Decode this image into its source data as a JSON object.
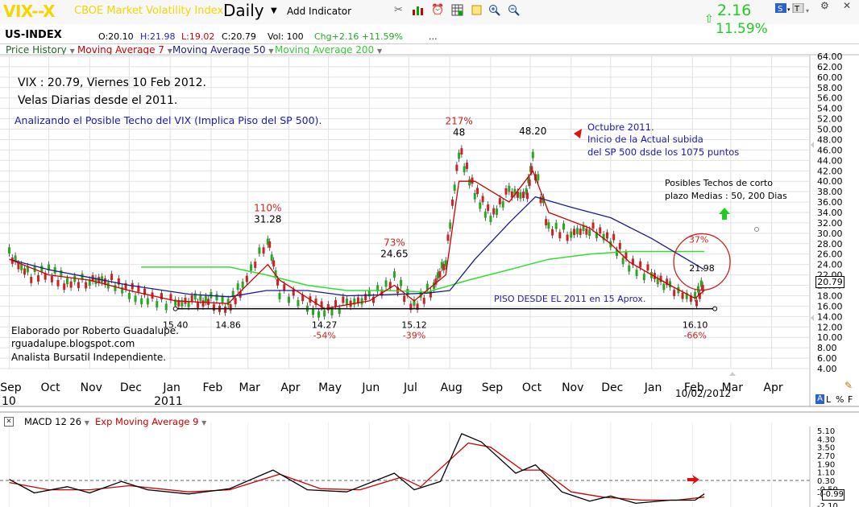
{
  "toolbar": {
    "symbol": "VIX--X",
    "description": "CBOE Market Volatility Index",
    "period": "Daily",
    "add_indicator": "Add Indicator",
    "change_value": "2.16",
    "change_pct": "11.59%",
    "icons": [
      "tools-icon",
      "bar-chart-icon",
      "alarm-icon",
      "grid-icon",
      "note-icon",
      "zoom-in-icon",
      "zoom-out-icon"
    ],
    "win_icons": [
      "s-icon",
      "t-icon",
      "settings-icon",
      "close-icon"
    ]
  },
  "quote": {
    "index_label": "US-INDEX",
    "open": "O:20.10",
    "high": "H:21.98",
    "low": "L:19.02",
    "close": "C:20.79",
    "volume": "Vol: 100",
    "change": "Chg+2.16 +11.59%",
    "more": "..."
  },
  "legend": {
    "price_history": "Price History",
    "ma7": "Moving Average 7",
    "ma50": "Moving Average 50",
    "ma200": "Moving Average 200"
  },
  "annotations": {
    "line1": "VIX : 20.79, Viernes 10 Feb 2012.",
    "line2": "Velas Diarias desde el 2011.",
    "line3": "Analizando el Posible Techo del VIX (Implica Piso del  SP 500).",
    "oct_title": "Octubre 2011.",
    "oct_line2": "Inicio de la Actual subida",
    "oct_line3": "del SP 500 dsde los 1075 puntos",
    "techos1": "Posibles Techos de corto",
    "techos2": "plazo Medias : 50, 200 Dias",
    "piso": "PISO DESDE EL 2011 en 15 Aprox.",
    "credit1": "Elaborado por Roberto Guadalupe.",
    "credit2": "rguadalupe.blogspot.com",
    "credit3": "Analista Bursatil Independiente.",
    "date_label": "10/02/2012",
    "last_price": "20.79",
    "mode_a": "A",
    "mode_l": "L",
    "mode_pct": "%",
    "mode_f": "F"
  },
  "peaks": [
    {
      "label": "15.40",
      "pct": "",
      "x": "2011-01-05",
      "y": 15.4,
      "pos": "below"
    },
    {
      "label": "14.86",
      "pct": "",
      "x": "2011-02-14",
      "y": 14.86,
      "pos": "below"
    },
    {
      "label": "31.28",
      "pct": "110%",
      "x": "2011-03-16",
      "y": 31.28,
      "pos": "above"
    },
    {
      "label": "14.27",
      "pct": "-54%",
      "x": "2011-04-28",
      "y": 14.27,
      "pos": "below"
    },
    {
      "label": "24.65",
      "pct": "73%",
      "x": "2011-06-20",
      "y": 24.65,
      "pos": "above"
    },
    {
      "label": "15.12",
      "pct": "-39%",
      "x": "2011-07-05",
      "y": 15.12,
      "pos": "below"
    },
    {
      "label": "48",
      "pct": "217%",
      "x": "2011-08-08",
      "y": 48.0,
      "pos": "above"
    },
    {
      "label": "48.20",
      "pct": "",
      "x": "2011-10-03",
      "y": 48.2,
      "pos": "above"
    },
    {
      "label": "21.98",
      "pct": "37%",
      "x": "2012-02-10",
      "y": 21.98,
      "pos": "circle"
    },
    {
      "label": "16.10",
      "pct": "-66%",
      "x": "2012-02-03",
      "y": 16.1,
      "pos": "below"
    }
  ],
  "chart_data": {
    "type": "line",
    "title": "VIX--X CBOE Market Volatility Index",
    "x_axis": {
      "months": [
        "Sep",
        "Oct",
        "Nov",
        "Dec",
        "Jan",
        "Feb",
        "Mar",
        "Apr",
        "May",
        "Jun",
        "Jul",
        "Aug",
        "Sep",
        "Oct",
        "Nov",
        "Dec",
        "Jan",
        "Feb",
        "Mar",
        "Apr"
      ],
      "years": [
        "10",
        "2011"
      ]
    },
    "ylim": [
      4,
      64
    ],
    "y_ticks": [
      "64.00",
      "62.00",
      "60.00",
      "58.00",
      "56.00",
      "54.00",
      "52.00",
      "50.00",
      "48.00",
      "46.00",
      "44.00",
      "42.00",
      "40.00",
      "38.00",
      "36.00",
      "34.00",
      "32.00",
      "30.00",
      "28.00",
      "26.00",
      "24.00",
      "22.00",
      "20.00",
      "18.00",
      "16.00",
      "14.00",
      "12.00",
      "10.00",
      "8.00",
      "6.00",
      "4.00"
    ],
    "grid": true,
    "legend_position": "top-left",
    "series": [
      {
        "name": "Price History",
        "color": "#228b22",
        "values": [
          [
            "2010-09-01",
            26
          ],
          [
            "2010-09-15",
            22
          ],
          [
            "2010-10-01",
            22.5
          ],
          [
            "2010-10-15",
            20.5
          ],
          [
            "2010-11-01",
            21
          ],
          [
            "2010-11-15",
            21
          ],
          [
            "2010-12-01",
            19
          ],
          [
            "2010-12-15",
            17.5
          ],
          [
            "2011-01-05",
            16.5
          ],
          [
            "2011-01-20",
            17
          ],
          [
            "2011-02-01",
            17
          ],
          [
            "2011-02-14",
            16
          ],
          [
            "2011-02-25",
            20
          ],
          [
            "2011-03-16",
            29
          ],
          [
            "2011-03-25",
            19
          ],
          [
            "2011-04-15",
            16.5
          ],
          [
            "2011-04-28",
            15
          ],
          [
            "2011-05-15",
            16.5
          ],
          [
            "2011-06-01",
            17.5
          ],
          [
            "2011-06-20",
            21
          ],
          [
            "2011-07-05",
            16
          ],
          [
            "2011-07-20",
            20
          ],
          [
            "2011-07-29",
            25
          ],
          [
            "2011-08-08",
            46
          ],
          [
            "2011-08-20",
            38
          ],
          [
            "2011-09-01",
            33
          ],
          [
            "2011-09-15",
            38
          ],
          [
            "2011-09-28",
            37
          ],
          [
            "2011-10-03",
            44
          ],
          [
            "2011-10-15",
            31
          ],
          [
            "2011-11-01",
            30
          ],
          [
            "2011-11-15",
            31
          ],
          [
            "2011-12-01",
            29
          ],
          [
            "2011-12-15",
            24
          ],
          [
            "2012-01-01",
            22
          ],
          [
            "2012-01-15",
            19.5
          ],
          [
            "2012-02-03",
            17
          ],
          [
            "2012-02-10",
            20.79
          ]
        ]
      },
      {
        "name": "Moving Average 7",
        "color": "#cc0000",
        "values": [
          [
            "2010-09-01",
            25
          ],
          [
            "2010-10-01",
            22
          ],
          [
            "2010-11-01",
            21
          ],
          [
            "2010-12-01",
            19
          ],
          [
            "2011-01-05",
            17
          ],
          [
            "2011-02-14",
            16.5
          ],
          [
            "2011-03-16",
            24
          ],
          [
            "2011-03-25",
            21
          ],
          [
            "2011-04-28",
            15.5
          ],
          [
            "2011-06-01",
            17
          ],
          [
            "2011-06-20",
            20
          ],
          [
            "2011-07-05",
            17
          ],
          [
            "2011-07-29",
            22
          ],
          [
            "2011-08-08",
            40
          ],
          [
            "2011-08-20",
            40
          ],
          [
            "2011-09-15",
            36
          ],
          [
            "2011-10-03",
            42
          ],
          [
            "2011-10-15",
            34
          ],
          [
            "2011-11-15",
            31
          ],
          [
            "2011-12-01",
            28
          ],
          [
            "2011-12-15",
            24.5
          ],
          [
            "2012-01-15",
            20
          ],
          [
            "2012-02-03",
            17.5
          ],
          [
            "2012-02-10",
            19
          ]
        ]
      },
      {
        "name": "Moving Average 50",
        "color": "#1a1a8c",
        "values": [
          [
            "2010-09-01",
            25
          ],
          [
            "2010-10-01",
            23
          ],
          [
            "2010-11-01",
            21.5
          ],
          [
            "2010-12-01",
            20
          ],
          [
            "2011-01-15",
            18.3
          ],
          [
            "2011-02-15",
            17.8
          ],
          [
            "2011-03-15",
            19
          ],
          [
            "2011-04-15",
            19
          ],
          [
            "2011-05-15",
            18
          ],
          [
            "2011-06-15",
            18.2
          ],
          [
            "2011-07-15",
            18.5
          ],
          [
            "2011-08-01",
            19
          ],
          [
            "2011-08-20",
            25
          ],
          [
            "2011-09-15",
            32
          ],
          [
            "2011-10-05",
            37
          ],
          [
            "2011-11-01",
            35
          ],
          [
            "2011-12-01",
            33
          ],
          [
            "2012-01-01",
            29
          ],
          [
            "2012-02-10",
            23
          ]
        ]
      },
      {
        "name": "Moving Average 200",
        "color": "#33dd33",
        "values": [
          [
            "2010-12-10",
            23.5
          ],
          [
            "2011-02-15",
            23.5
          ],
          [
            "2011-03-15",
            22
          ],
          [
            "2011-04-15",
            20
          ],
          [
            "2011-05-15",
            19
          ],
          [
            "2011-06-15",
            19
          ],
          [
            "2011-07-15",
            18.7
          ],
          [
            "2011-08-15",
            21
          ],
          [
            "2011-09-15",
            23
          ],
          [
            "2011-10-15",
            25
          ],
          [
            "2011-11-15",
            26
          ],
          [
            "2011-12-15",
            26.5
          ],
          [
            "2012-02-10",
            26.5
          ]
        ]
      },
      {
        "name": "Support 15",
        "color": "#000000",
        "values": [
          [
            "2011-01-05",
            15.5
          ],
          [
            "2012-02-18",
            15.5
          ]
        ]
      }
    ],
    "macd": {
      "title": "MACD 12 26",
      "signal_title": "Exp Moving Average 9",
      "y_ticks": [
        "5.10",
        "4.30",
        "3.50",
        "2.70",
        "1.90",
        "1.10",
        "0.30",
        "-0.50",
        "-0.99",
        "-2.10"
      ],
      "current": "-0.99",
      "ylim": [
        -2.1,
        5.1
      ],
      "series": [
        {
          "name": "MACD 12 26",
          "color": "#000000",
          "values": [
            [
              "2010-09-01",
              0.4
            ],
            [
              "2010-09-20",
              -0.9
            ],
            [
              "2010-10-15",
              -0.3
            ],
            [
              "2010-11-01",
              -0.9
            ],
            [
              "2010-11-25",
              0.2
            ],
            [
              "2010-12-15",
              -0.6
            ],
            [
              "2011-01-15",
              -1.0
            ],
            [
              "2011-02-15",
              -0.5
            ],
            [
              "2011-03-20",
              1.3
            ],
            [
              "2011-04-15",
              -0.6
            ],
            [
              "2011-05-15",
              -0.8
            ],
            [
              "2011-06-20",
              1.0
            ],
            [
              "2011-07-05",
              -0.6
            ],
            [
              "2011-07-25",
              0.2
            ],
            [
              "2011-08-10",
              4.8
            ],
            [
              "2011-08-25",
              4.0
            ],
            [
              "2011-09-20",
              1.0
            ],
            [
              "2011-10-05",
              1.8
            ],
            [
              "2011-10-25",
              -0.8
            ],
            [
              "2011-11-15",
              -1.7
            ],
            [
              "2011-12-01",
              -1.2
            ],
            [
              "2011-12-20",
              -1.9
            ],
            [
              "2012-01-15",
              -1.6
            ],
            [
              "2012-02-03",
              -1.6
            ],
            [
              "2012-02-10",
              -0.99
            ]
          ]
        },
        {
          "name": "Exp Moving Average 9",
          "color": "#cc0000",
          "values": [
            [
              "2010-09-01",
              0.1
            ],
            [
              "2010-10-01",
              -0.6
            ],
            [
              "2010-11-01",
              -0.6
            ],
            [
              "2010-12-01",
              -0.2
            ],
            [
              "2011-01-15",
              -0.8
            ],
            [
              "2011-02-15",
              -0.6
            ],
            [
              "2011-03-25",
              0.9
            ],
            [
              "2011-04-25",
              -0.5
            ],
            [
              "2011-05-25",
              -0.6
            ],
            [
              "2011-06-25",
              0.6
            ],
            [
              "2011-07-10",
              -0.3
            ],
            [
              "2011-08-15",
              3.9
            ],
            [
              "2011-09-01",
              3.5
            ],
            [
              "2011-09-25",
              1.3
            ],
            [
              "2011-10-10",
              1.3
            ],
            [
              "2011-11-01",
              -0.8
            ],
            [
              "2011-11-25",
              -1.3
            ],
            [
              "2011-12-25",
              -1.6
            ],
            [
              "2012-01-20",
              -1.6
            ],
            [
              "2012-02-10",
              -1.3
            ]
          ]
        }
      ]
    }
  }
}
